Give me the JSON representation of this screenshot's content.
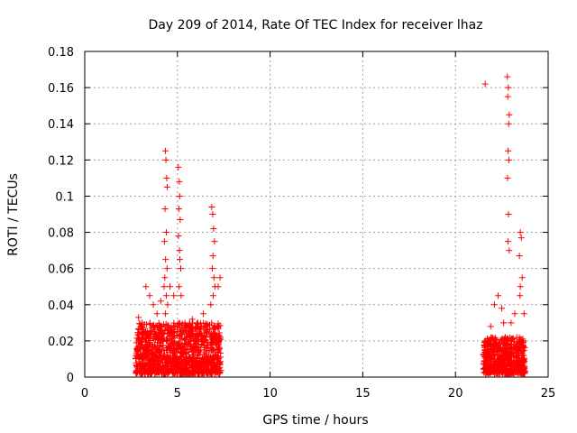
{
  "chart_data": {
    "type": "scatter",
    "title": "Day 209 of 2014, Rate Of TEC Index for receiver lhaz",
    "xlabel": "GPS time / hours",
    "ylabel": "ROTI / TECUs",
    "xlim": [
      0,
      25
    ],
    "ylim": [
      0,
      0.18
    ],
    "x_ticks": [
      "0",
      "5",
      "10",
      "15",
      "20",
      "25"
    ],
    "y_ticks": [
      "0",
      "0.02",
      "0.04",
      "0.06",
      "0.08",
      "0.1",
      "0.12",
      "0.14",
      "0.16",
      "0.18"
    ],
    "grid": true,
    "marker": "plus",
    "color": "#ff0000",
    "series": [
      {
        "x": [
          4.35,
          4.38,
          4.42,
          4.45,
          4.33,
          4.4,
          4.3,
          4.36,
          4.44,
          4.32,
          4.28,
          4.4,
          4.47,
          4.35,
          5.05,
          5.1,
          5.12,
          5.08,
          5.15,
          5.06,
          5.11,
          5.13,
          5.18,
          5.09,
          5.2,
          6.85,
          6.9,
          6.95,
          7.0,
          6.92,
          6.88,
          6.97,
          7.02,
          6.93,
          6.8,
          3.3,
          3.5,
          3.7,
          3.9,
          4.1,
          4.6,
          4.8,
          5.4,
          5.6,
          5.8,
          6.1,
          6.4,
          6.6,
          7.2,
          7.3,
          3.1,
          2.9,
          21.6,
          22.8,
          22.85,
          22.82,
          22.9,
          22.87,
          22.84,
          22.88,
          22.81,
          22.86,
          22.83,
          22.9,
          23.5,
          23.55,
          23.45,
          23.6,
          23.5,
          23.48,
          22.3,
          22.1,
          22.5,
          23.2,
          23.0,
          21.9,
          23.7,
          22.6
        ],
        "y": [
          0.125,
          0.12,
          0.11,
          0.105,
          0.093,
          0.08,
          0.075,
          0.065,
          0.06,
          0.055,
          0.05,
          0.045,
          0.04,
          0.035,
          0.116,
          0.108,
          0.1,
          0.093,
          0.087,
          0.078,
          0.07,
          0.065,
          0.06,
          0.05,
          0.045,
          0.094,
          0.09,
          0.082,
          0.075,
          0.067,
          0.06,
          0.055,
          0.05,
          0.045,
          0.04,
          0.05,
          0.045,
          0.04,
          0.035,
          0.042,
          0.05,
          0.045,
          0.03,
          0.028,
          0.032,
          0.03,
          0.035,
          0.025,
          0.05,
          0.055,
          0.03,
          0.033,
          0.162,
          0.166,
          0.16,
          0.155,
          0.145,
          0.14,
          0.125,
          0.12,
          0.11,
          0.09,
          0.075,
          0.07,
          0.08,
          0.077,
          0.067,
          0.055,
          0.05,
          0.045,
          0.045,
          0.04,
          0.038,
          0.035,
          0.03,
          0.028,
          0.035,
          0.03
        ]
      }
    ],
    "dense_bands": [
      {
        "x_start": 2.75,
        "x_end": 7.35,
        "y_min": 0.002,
        "y_max": 0.03
      },
      {
        "x_start": 21.5,
        "x_end": 23.75,
        "y_min": 0.002,
        "y_max": 0.022
      }
    ]
  }
}
